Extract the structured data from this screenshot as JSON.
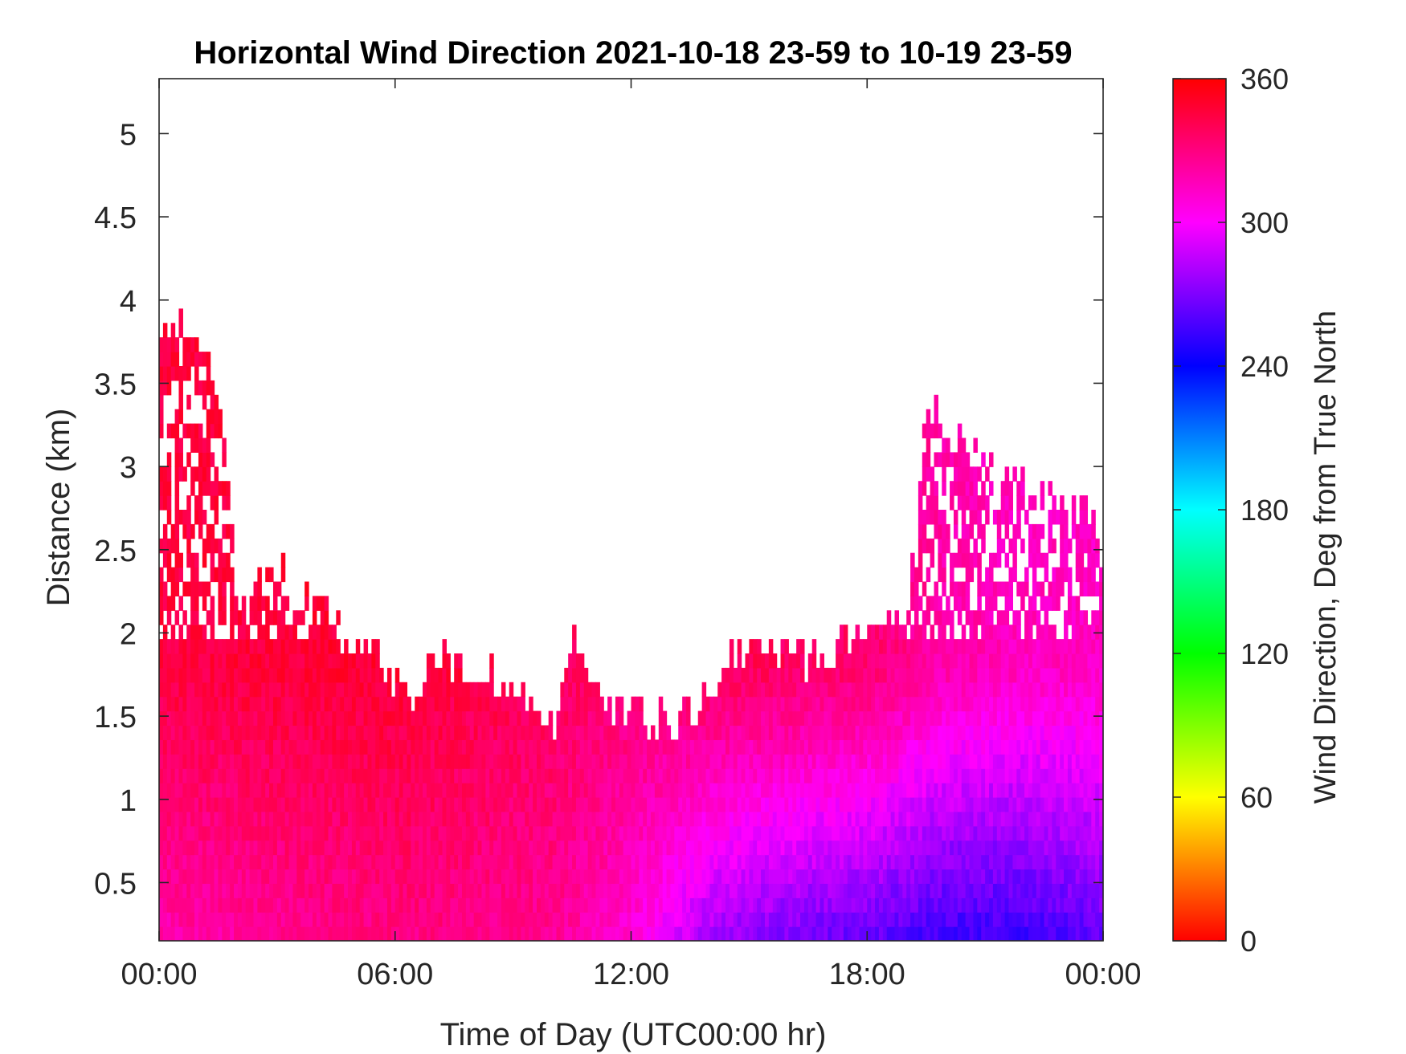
{
  "chart_data": {
    "type": "heatmap",
    "title": "Horizontal Wind Direction 2021-10-18 23-59 to 10-19 23-59",
    "xlabel": "Time of Day (UTC00:00 hr)",
    "ylabel": "Distance (km)",
    "x_ticks": [
      "00:00",
      "06:00",
      "12:00",
      "18:00",
      "00:00"
    ],
    "x_tick_values": [
      0,
      6,
      12,
      18,
      24
    ],
    "xlim": [
      0,
      24
    ],
    "y_ticks": [
      "0.5",
      "1",
      "1.5",
      "2",
      "2.5",
      "3",
      "3.5",
      "4",
      "4.5",
      "5"
    ],
    "y_tick_values": [
      0.5,
      1,
      1.5,
      2,
      2.5,
      3,
      3.5,
      4,
      4.5,
      5
    ],
    "ylim": [
      0.15,
      5.33
    ],
    "colorbar": {
      "label": "Wind Direction, Deg from True North",
      "ticks": [
        "0",
        "60",
        "120",
        "180",
        "240",
        "300",
        "360"
      ],
      "tick_values": [
        0,
        60,
        120,
        180,
        240,
        300,
        360
      ],
      "range": [
        0,
        360
      ],
      "colors": [
        "#ff0000",
        "#ffff00",
        "#00ff00",
        "#00ffff",
        "#0000ff",
        "#ff00ff",
        "#ff0000"
      ]
    },
    "coverage_top_km": [
      [
        0.0,
        3.85
      ],
      [
        0.5,
        3.85
      ],
      [
        1.0,
        3.75
      ],
      [
        1.5,
        3.45
      ],
      [
        1.8,
        2.6
      ],
      [
        2.0,
        2.1
      ],
      [
        2.7,
        2.4
      ],
      [
        3.5,
        2.2
      ],
      [
        4.5,
        2.0
      ],
      [
        5.5,
        1.8
      ],
      [
        6.5,
        1.6
      ],
      [
        7.2,
        1.8
      ],
      [
        8.0,
        1.7
      ],
      [
        9.0,
        1.65
      ],
      [
        10.0,
        1.4
      ],
      [
        10.5,
        1.9
      ],
      [
        11.5,
        1.5
      ],
      [
        12.5,
        1.45
      ],
      [
        13.5,
        1.45
      ],
      [
        14.5,
        1.85
      ],
      [
        15.5,
        1.85
      ],
      [
        16.5,
        1.8
      ],
      [
        17.5,
        1.9
      ],
      [
        18.5,
        2.1
      ],
      [
        19.0,
        2.0
      ],
      [
        19.5,
        3.3
      ],
      [
        20.5,
        3.1
      ],
      [
        21.5,
        2.95
      ],
      [
        22.5,
        2.8
      ],
      [
        23.2,
        2.75
      ],
      [
        24.0,
        2.7
      ]
    ],
    "direction_profile_deg": [
      [
        0.0,
        345,
        320
      ],
      [
        6.0,
        348,
        330
      ],
      [
        10.0,
        340,
        325
      ],
      [
        12.0,
        335,
        310
      ],
      [
        14.0,
        340,
        280
      ],
      [
        16.0,
        338,
        270
      ],
      [
        18.0,
        335,
        265
      ],
      [
        20.0,
        320,
        255
      ],
      [
        22.0,
        315,
        255
      ],
      [
        24.0,
        315,
        265
      ]
    ]
  }
}
